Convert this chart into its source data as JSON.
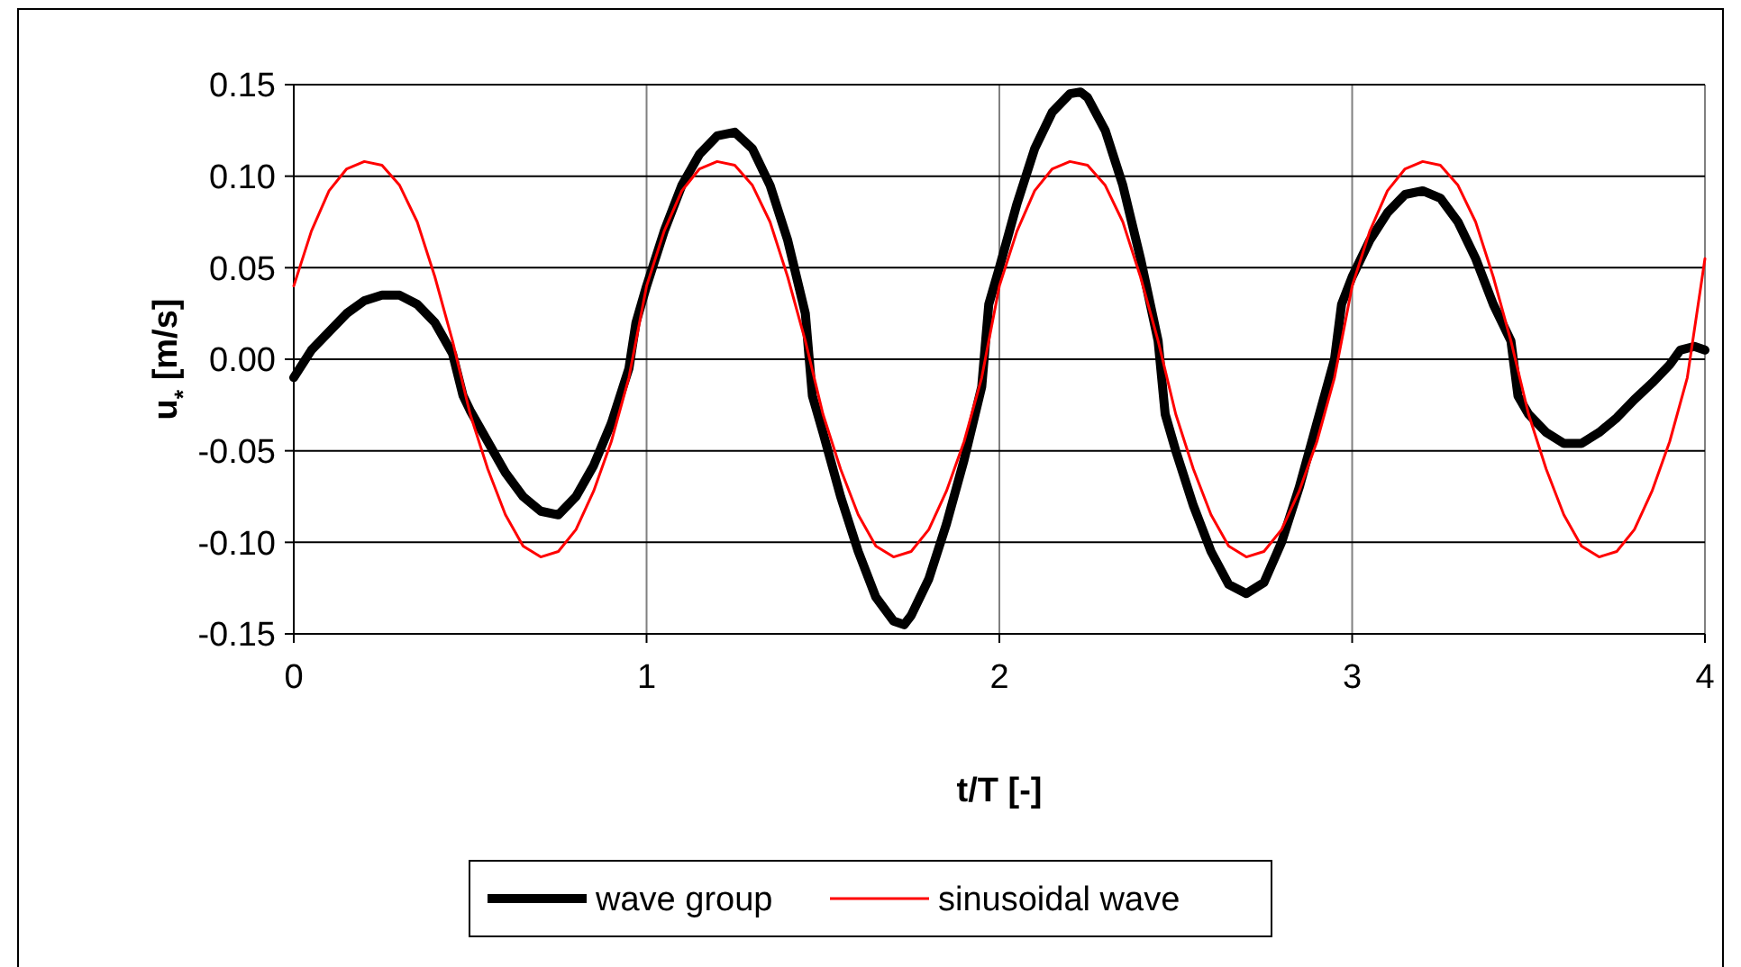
{
  "chart_data": {
    "type": "line",
    "xlabel": "t/T [-]",
    "ylabel": "u$_{*}$ [m/s]",
    "xlim": [
      0,
      4
    ],
    "xticks": [
      0,
      1,
      2,
      3,
      4
    ],
    "ylim": [
      -0.15,
      0.15
    ],
    "yticks": [
      {
        "value": -0.15,
        "label": "-0.15"
      },
      {
        "value": -0.1,
        "label": "-0.10"
      },
      {
        "value": -0.05,
        "label": "-0.05"
      },
      {
        "value": 0,
        "label": "0.00"
      },
      {
        "value": 0.05,
        "label": "0.05"
      },
      {
        "value": 0.1,
        "label": "0.10"
      },
      {
        "value": 0.15,
        "label": "0.15"
      }
    ],
    "grid": true,
    "legend": "bottom",
    "line_style": "solid",
    "series": [
      {
        "name": "wave group",
        "color": "#000000",
        "x": [
          0,
          0.05,
          0.1,
          0.15,
          0.2,
          0.25,
          0.3,
          0.35,
          0.4,
          0.45,
          0.48,
          0.5,
          0.55,
          0.6,
          0.65,
          0.7,
          0.75,
          0.8,
          0.85,
          0.9,
          0.95,
          0.97,
          1,
          1.05,
          1.1,
          1.15,
          1.2,
          1.25,
          1.3,
          1.35,
          1.4,
          1.45,
          1.47,
          1.5,
          1.55,
          1.6,
          1.65,
          1.7,
          1.73,
          1.75,
          1.8,
          1.85,
          1.9,
          1.95,
          1.97,
          2,
          2.05,
          2.1,
          2.15,
          2.2,
          2.23,
          2.25,
          2.3,
          2.35,
          2.4,
          2.45,
          2.47,
          2.5,
          2.55,
          2.6,
          2.65,
          2.7,
          2.75,
          2.8,
          2.85,
          2.9,
          2.95,
          2.97,
          3,
          3.05,
          3.1,
          3.15,
          3.2,
          3.25,
          3.3,
          3.35,
          3.4,
          3.45,
          3.47,
          3.5,
          3.55,
          3.6,
          3.65,
          3.7,
          3.75,
          3.8,
          3.85,
          3.9,
          3.93,
          3.97,
          4
        ],
        "values": [
          -0.01,
          0.005,
          0.015,
          0.025,
          0.032,
          0.035,
          0.035,
          0.03,
          0.02,
          0.003,
          -0.02,
          -0.028,
          -0.045,
          -0.062,
          -0.075,
          -0.083,
          -0.085,
          -0.075,
          -0.058,
          -0.035,
          -0.005,
          0.02,
          0.04,
          0.07,
          0.095,
          0.112,
          0.122,
          0.124,
          0.115,
          0.095,
          0.065,
          0.025,
          -0.02,
          -0.04,
          -0.075,
          -0.105,
          -0.13,
          -0.143,
          -0.145,
          -0.14,
          -0.12,
          -0.09,
          -0.055,
          -0.015,
          0.03,
          0.05,
          0.085,
          0.115,
          0.135,
          0.145,
          0.146,
          0.143,
          0.125,
          0.095,
          0.055,
          0.01,
          -0.03,
          -0.05,
          -0.08,
          -0.105,
          -0.123,
          -0.128,
          -0.122,
          -0.1,
          -0.07,
          -0.035,
          0,
          0.03,
          0.045,
          0.065,
          0.08,
          0.09,
          0.092,
          0.088,
          0.075,
          0.055,
          0.03,
          0.01,
          -0.02,
          -0.03,
          -0.04,
          -0.046,
          -0.046,
          -0.04,
          -0.032,
          -0.022,
          -0.013,
          -0.003,
          0.005,
          0.007,
          0.005
        ]
      },
      {
        "name": "sinusoidal wave",
        "color": "#ff0000",
        "x": [
          0,
          0.05,
          0.1,
          0.15,
          0.2,
          0.25,
          0.3,
          0.35,
          0.4,
          0.45,
          0.5,
          0.55,
          0.6,
          0.65,
          0.7,
          0.75,
          0.8,
          0.85,
          0.9,
          0.95,
          1,
          1.05,
          1.1,
          1.15,
          1.2,
          1.25,
          1.3,
          1.35,
          1.4,
          1.45,
          1.5,
          1.55,
          1.6,
          1.65,
          1.7,
          1.75,
          1.8,
          1.85,
          1.9,
          1.95,
          2,
          2.05,
          2.1,
          2.15,
          2.2,
          2.25,
          2.3,
          2.35,
          2.4,
          2.45,
          2.5,
          2.55,
          2.6,
          2.65,
          2.7,
          2.75,
          2.8,
          2.85,
          2.9,
          2.95,
          3,
          3.05,
          3.1,
          3.15,
          3.2,
          3.25,
          3.3,
          3.35,
          3.4,
          3.45,
          3.5,
          3.55,
          3.6,
          3.65,
          3.7,
          3.75,
          3.8,
          3.85,
          3.9,
          3.95,
          4
        ],
        "values": [
          0.04,
          0.07,
          0.092,
          0.104,
          0.108,
          0.106,
          0.095,
          0.075,
          0.045,
          0.01,
          -0.03,
          -0.06,
          -0.085,
          -0.102,
          -0.108,
          -0.105,
          -0.093,
          -0.072,
          -0.045,
          -0.01,
          0.04,
          0.07,
          0.092,
          0.104,
          0.108,
          0.106,
          0.095,
          0.075,
          0.045,
          0.01,
          -0.03,
          -0.06,
          -0.085,
          -0.102,
          -0.108,
          -0.105,
          -0.093,
          -0.072,
          -0.045,
          -0.01,
          0.04,
          0.07,
          0.092,
          0.104,
          0.108,
          0.106,
          0.095,
          0.075,
          0.045,
          0.01,
          -0.03,
          -0.06,
          -0.085,
          -0.102,
          -0.108,
          -0.105,
          -0.093,
          -0.072,
          -0.045,
          -0.01,
          0.04,
          0.07,
          0.092,
          0.104,
          0.108,
          0.106,
          0.095,
          0.075,
          0.045,
          0.01,
          -0.03,
          -0.06,
          -0.085,
          -0.102,
          -0.108,
          -0.105,
          -0.093,
          -0.072,
          -0.045,
          -0.01,
          0.055
        ]
      }
    ]
  }
}
